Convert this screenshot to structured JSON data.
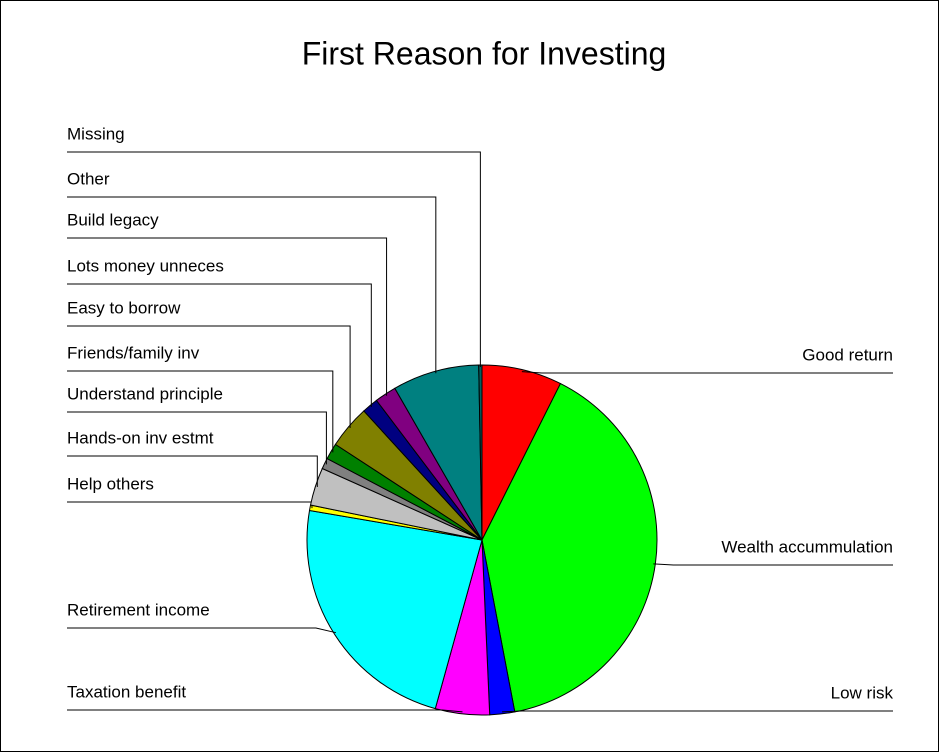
{
  "chart_data": {
    "type": "pie",
    "title": "First Reason for Investing",
    "categories": [
      "Good return",
      "Wealth accummulation",
      "Low  risk",
      "Taxation benefit",
      "Retirement income",
      "Help others",
      "Hands-on inv estmt",
      "Understand principle",
      "Friends/family inv",
      "Easy to borrow",
      "Lots money unneces",
      "Build legacy",
      "Other",
      "Missing"
    ],
    "values": [
      7.4,
      39.6,
      2.3,
      5,
      23.4,
      0.5,
      3.5,
      1,
      1.5,
      4,
      1.5,
      2,
      8,
      0.3
    ],
    "colors": [
      "#ff0000",
      "#00ff00",
      "#0000ff",
      "#ff00ff",
      "#00ffff",
      "#ffff00",
      "#c0c0c0",
      "#808080",
      "#008000",
      "#808000",
      "#000080",
      "#800080",
      "#008080",
      "#006060"
    ]
  }
}
